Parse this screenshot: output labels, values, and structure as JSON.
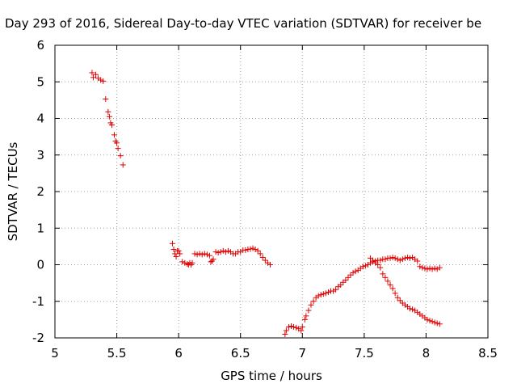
{
  "chart_data": {
    "type": "scatter",
    "title": "Day 293 of 2016, Sidereal Day-to-day VTEC variation (SDTVAR) for receiver be",
    "xlabel": "GPS time / hours",
    "ylabel": "SDTVAR / TECUs",
    "xlim": [
      5,
      8.5
    ],
    "ylim": [
      -2,
      6
    ],
    "xticks": [
      5,
      5.5,
      6,
      6.5,
      7,
      7.5,
      8,
      8.5
    ],
    "xtick_labels": [
      "5",
      "5.5",
      "6",
      "6.5",
      "7",
      "7.5",
      "8",
      "8.5"
    ],
    "yticks": [
      -2,
      -1,
      0,
      1,
      2,
      3,
      4,
      5,
      6
    ],
    "ytick_labels": [
      "-2",
      "-1",
      "0",
      "1",
      "2",
      "3",
      "4",
      "5",
      "6"
    ],
    "grid": true,
    "marker": "+",
    "marker_color": "#e00000",
    "series": [
      {
        "points": [
          [
            5.3,
            5.25
          ],
          [
            5.31,
            5.12
          ],
          [
            5.33,
            5.2
          ],
          [
            5.35,
            5.1
          ],
          [
            5.37,
            5.05
          ],
          [
            5.39,
            5.02
          ],
          [
            5.41,
            4.53
          ],
          [
            5.43,
            4.18
          ],
          [
            5.44,
            4.05
          ],
          [
            5.45,
            3.88
          ],
          [
            5.46,
            3.82
          ],
          [
            5.48,
            3.55
          ],
          [
            5.49,
            3.38
          ],
          [
            5.5,
            3.33
          ],
          [
            5.51,
            3.18
          ],
          [
            5.53,
            2.98
          ],
          [
            5.55,
            2.73
          ],
          [
            5.95,
            0.58
          ],
          [
            5.96,
            0.42
          ],
          [
            5.97,
            0.3
          ],
          [
            5.98,
            0.22
          ],
          [
            5.99,
            0.38
          ],
          [
            6.0,
            0.38
          ],
          [
            6.01,
            0.3
          ],
          [
            6.03,
            0.08
          ],
          [
            6.05,
            0.05
          ],
          [
            6.07,
            0.02
          ],
          [
            6.08,
            0.0
          ],
          [
            6.09,
            0.05
          ],
          [
            6.1,
            0.0
          ],
          [
            6.11,
            0.05
          ],
          [
            6.13,
            0.3
          ],
          [
            6.15,
            0.28
          ],
          [
            6.17,
            0.3
          ],
          [
            6.19,
            0.28
          ],
          [
            6.21,
            0.3
          ],
          [
            6.23,
            0.28
          ],
          [
            6.25,
            0.25
          ],
          [
            6.26,
            0.08
          ],
          [
            6.27,
            0.1
          ],
          [
            6.28,
            0.15
          ],
          [
            6.3,
            0.35
          ],
          [
            6.32,
            0.33
          ],
          [
            6.34,
            0.35
          ],
          [
            6.36,
            0.38
          ],
          [
            6.38,
            0.35
          ],
          [
            6.4,
            0.38
          ],
          [
            6.42,
            0.35
          ],
          [
            6.44,
            0.3
          ],
          [
            6.46,
            0.3
          ],
          [
            6.48,
            0.35
          ],
          [
            6.5,
            0.35
          ],
          [
            6.52,
            0.4
          ],
          [
            6.54,
            0.4
          ],
          [
            6.56,
            0.42
          ],
          [
            6.58,
            0.43
          ],
          [
            6.6,
            0.45
          ],
          [
            6.62,
            0.42
          ],
          [
            6.64,
            0.38
          ],
          [
            6.66,
            0.3
          ],
          [
            6.68,
            0.2
          ],
          [
            6.7,
            0.12
          ],
          [
            6.72,
            0.05
          ],
          [
            6.74,
            0.0
          ],
          [
            6.86,
            -1.9
          ],
          [
            6.87,
            -1.8
          ],
          [
            6.89,
            -1.7
          ],
          [
            6.91,
            -1.68
          ],
          [
            6.93,
            -1.7
          ],
          [
            6.95,
            -1.72
          ],
          [
            6.97,
            -1.75
          ],
          [
            6.99,
            -1.8
          ],
          [
            7.0,
            -1.7
          ],
          [
            7.02,
            -1.5
          ],
          [
            7.03,
            -1.4
          ],
          [
            7.05,
            -1.25
          ],
          [
            7.07,
            -1.1
          ],
          [
            7.09,
            -1.0
          ],
          [
            7.11,
            -0.9
          ],
          [
            7.13,
            -0.85
          ],
          [
            7.15,
            -0.82
          ],
          [
            7.17,
            -0.8
          ],
          [
            7.19,
            -0.78
          ],
          [
            7.21,
            -0.75
          ],
          [
            7.23,
            -0.72
          ],
          [
            7.25,
            -0.72
          ],
          [
            7.27,
            -0.68
          ],
          [
            7.29,
            -0.6
          ],
          [
            7.31,
            -0.55
          ],
          [
            7.33,
            -0.48
          ],
          [
            7.35,
            -0.42
          ],
          [
            7.37,
            -0.35
          ],
          [
            7.39,
            -0.28
          ],
          [
            7.41,
            -0.22
          ],
          [
            7.43,
            -0.18
          ],
          [
            7.45,
            -0.15
          ],
          [
            7.47,
            -0.1
          ],
          [
            7.49,
            -0.05
          ],
          [
            7.51,
            -0.03
          ],
          [
            7.53,
            0.0
          ],
          [
            7.55,
            0.05
          ],
          [
            7.57,
            0.08
          ],
          [
            7.59,
            0.1
          ],
          [
            7.61,
            0.12
          ],
          [
            7.63,
            0.12
          ],
          [
            7.65,
            0.15
          ],
          [
            7.67,
            0.15
          ],
          [
            7.69,
            0.18
          ],
          [
            7.71,
            0.18
          ],
          [
            7.73,
            0.2
          ],
          [
            7.75,
            0.18
          ],
          [
            7.77,
            0.15
          ],
          [
            7.79,
            0.12
          ],
          [
            7.81,
            0.15
          ],
          [
            7.83,
            0.18
          ],
          [
            7.85,
            0.2
          ],
          [
            7.87,
            0.18
          ],
          [
            7.89,
            0.2
          ],
          [
            7.91,
            0.15
          ],
          [
            7.93,
            0.1
          ],
          [
            7.95,
            -0.05
          ],
          [
            7.97,
            -0.08
          ],
          [
            7.99,
            -0.1
          ],
          [
            8.01,
            -0.12
          ],
          [
            8.03,
            -0.1
          ],
          [
            8.05,
            -0.12
          ],
          [
            8.07,
            -0.1
          ],
          [
            8.09,
            -0.12
          ],
          [
            8.11,
            -0.08
          ],
          [
            7.55,
            0.18
          ],
          [
            7.57,
            0.12
          ],
          [
            7.59,
            0.05
          ],
          [
            7.61,
            0.0
          ],
          [
            7.63,
            -0.08
          ],
          [
            7.65,
            -0.25
          ],
          [
            7.67,
            -0.35
          ],
          [
            7.69,
            -0.45
          ],
          [
            7.71,
            -0.55
          ],
          [
            7.73,
            -0.65
          ],
          [
            7.75,
            -0.78
          ],
          [
            7.77,
            -0.9
          ],
          [
            7.79,
            -0.98
          ],
          [
            7.81,
            -1.05
          ],
          [
            7.83,
            -1.1
          ],
          [
            7.85,
            -1.15
          ],
          [
            7.87,
            -1.2
          ],
          [
            7.89,
            -1.22
          ],
          [
            7.91,
            -1.25
          ],
          [
            7.93,
            -1.3
          ],
          [
            7.95,
            -1.35
          ],
          [
            7.97,
            -1.4
          ],
          [
            7.99,
            -1.45
          ],
          [
            8.01,
            -1.5
          ],
          [
            8.03,
            -1.53
          ],
          [
            8.05,
            -1.55
          ],
          [
            8.07,
            -1.58
          ],
          [
            8.09,
            -1.6
          ],
          [
            8.11,
            -1.62
          ]
        ]
      }
    ]
  }
}
